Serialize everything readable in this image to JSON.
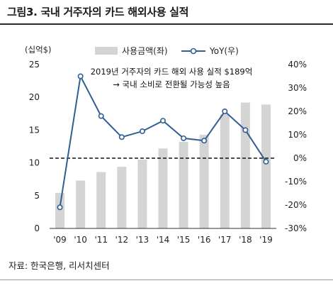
{
  "figure_title": "그림3. 국내 거주자의 카드 해외사용 실적",
  "source_text": "자료: 한국은행, 리서치센터",
  "chart_data": {
    "type": "bar",
    "categories": [
      "'09",
      "'10",
      "'11",
      "'12",
      "'13",
      "'14",
      "'15",
      "'16",
      "'17",
      "'18",
      "'19"
    ],
    "series": [
      {
        "name": "사용금액(좌)",
        "type": "bar",
        "axis": "left",
        "color": "#d4d4d4",
        "values": [
          5.4,
          7.3,
          8.6,
          9.4,
          10.5,
          12.2,
          13.2,
          14.3,
          17.4,
          19.2,
          18.9
        ]
      },
      {
        "name": "YoY(우)",
        "type": "line",
        "axis": "right",
        "color": "#2f5f93",
        "values": [
          -21,
          35,
          18,
          9,
          11.5,
          16,
          8.5,
          7.5,
          20,
          12,
          -1.5
        ]
      }
    ],
    "y_left": {
      "label": "(십억$)",
      "min": 0,
      "max": 25,
      "ticks": [
        "0",
        "5",
        "10",
        "15",
        "20",
        "25"
      ]
    },
    "y_right": {
      "min": -30,
      "max": 40,
      "ticks": [
        "-30%",
        "-20%",
        "-10%",
        "0%",
        "10%",
        "20%",
        "30%",
        "40%"
      ]
    },
    "reference_line": {
      "axis": "right",
      "value": 0,
      "style": "dashed"
    },
    "annotation": [
      "2019년 거주자의 카드 해외 사용 실적 $189억",
      "→ 국내 소비로 전환될 가능성 높음"
    ],
    "legend_position": "top"
  }
}
